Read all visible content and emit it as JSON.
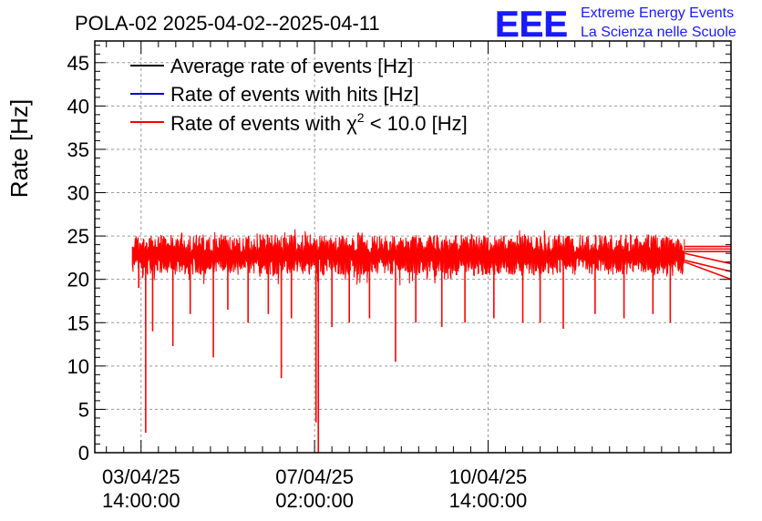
{
  "chart_data": {
    "type": "line",
    "title": "POLA-02 2025-04-02--2025-04-11",
    "ylabel": "Rate [Hz]",
    "xlabel": "",
    "ylim": [
      0,
      47.5
    ],
    "yticks": [
      0,
      5,
      10,
      15,
      20,
      25,
      30,
      35,
      40,
      45
    ],
    "grid": true,
    "legend_position": "top-left",
    "x_unit": "hours since 2025-04-02 00:00",
    "xlim": [
      22,
      242
    ],
    "xtick_positions": [
      38,
      98,
      158
    ],
    "xticks": [
      {
        "date": "03/04/25",
        "time": "14:00:00"
      },
      {
        "date": "07/04/25",
        "time": "02:00:00"
      },
      {
        "date": "10/04/25",
        "time": "14:00:00"
      }
    ],
    "series": [
      {
        "name": "Average rate of events [Hz]",
        "color": "#000000",
        "level": 23.0
      },
      {
        "name": "Rate of events with hits [Hz]",
        "color": "#0000cc",
        "level": 23.0
      },
      {
        "name": "Rate of events with χ² < 10.0 [Hz]",
        "color": "#ff0000",
        "level": 23.0,
        "legend_prefix": "Rate of events with ",
        "legend_symbol": "χ",
        "legend_sup": "2",
        "legend_suffix": " < 10.0 [Hz]"
      }
    ],
    "band": {
      "x_start": 35,
      "x_end": 226,
      "low": 20.5,
      "high": 25.2
    },
    "dips": [
      {
        "x": 37.2,
        "y": 19.0
      },
      {
        "x": 39.6,
        "y": 2.3
      },
      {
        "x": 42.0,
        "y": 14.0
      },
      {
        "x": 49.0,
        "y": 12.3
      },
      {
        "x": 55.0,
        "y": 16.0
      },
      {
        "x": 63.0,
        "y": 11.0
      },
      {
        "x": 68.0,
        "y": 16.5
      },
      {
        "x": 75.0,
        "y": 15.0
      },
      {
        "x": 82.0,
        "y": 16.0
      },
      {
        "x": 86.5,
        "y": 8.6
      },
      {
        "x": 90.0,
        "y": 15.5
      },
      {
        "x": 98.5,
        "y": 3.5
      },
      {
        "x": 99.3,
        "y": 0.0
      },
      {
        "x": 104.0,
        "y": 14.5
      },
      {
        "x": 110.0,
        "y": 15.0
      },
      {
        "x": 117.0,
        "y": 15.5
      },
      {
        "x": 126.0,
        "y": 10.5
      },
      {
        "x": 133.0,
        "y": 15.0
      },
      {
        "x": 142.0,
        "y": 14.5
      },
      {
        "x": 150.0,
        "y": 15.0
      },
      {
        "x": 160.0,
        "y": 15.5
      },
      {
        "x": 170.0,
        "y": 15.0
      },
      {
        "x": 176.0,
        "y": 15.0
      },
      {
        "x": 184.0,
        "y": 14.3
      },
      {
        "x": 195.0,
        "y": 16.0
      },
      {
        "x": 205.0,
        "y": 15.5
      },
      {
        "x": 215.0,
        "y": 16.0
      },
      {
        "x": 221.0,
        "y": 15.0
      }
    ],
    "tail_lines": [
      {
        "x_start": 226,
        "y_start": 23.0,
        "x_end": 242,
        "y_end": 21.8
      },
      {
        "x_start": 226,
        "y_start": 22.2,
        "x_end": 242,
        "y_end": 20.9
      },
      {
        "x_start": 226,
        "y_start": 22.0,
        "x_end": 242,
        "y_end": 20.0
      },
      {
        "x_start": 226,
        "y_start": 23.5,
        "x_end": 242,
        "y_end": 23.5
      },
      {
        "x_start": 226,
        "y_start": 23.8,
        "x_end": 242,
        "y_end": 23.8
      },
      {
        "x_start": 226,
        "y_start": 23.2,
        "x_end": 242,
        "y_end": 23.2
      }
    ]
  },
  "logo": {
    "letters": "EEE",
    "line1": "Extreme Energy Events",
    "line2": "La Scienza nelle Scuole",
    "color": "#1a1aff"
  }
}
